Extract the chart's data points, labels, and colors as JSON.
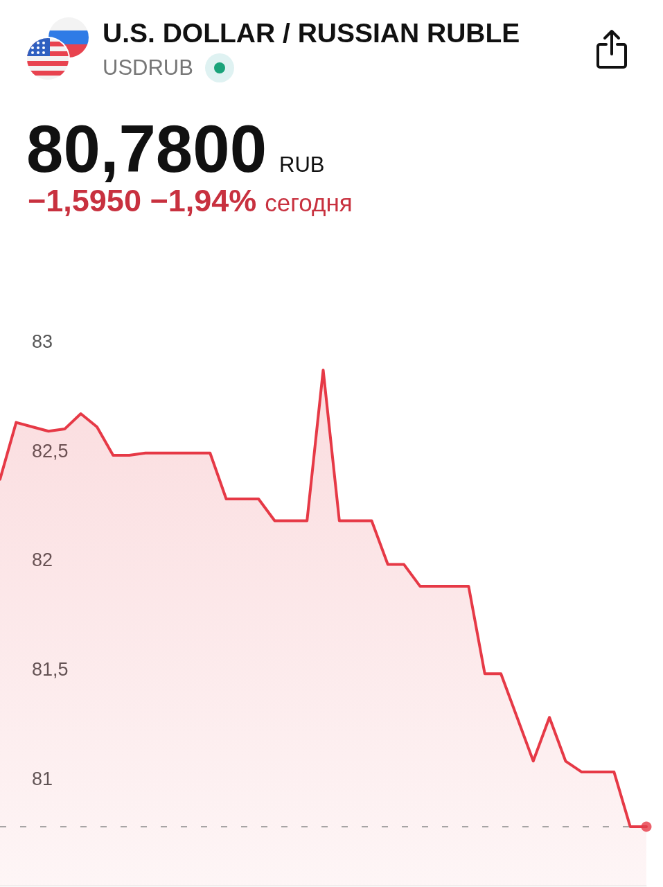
{
  "chart_data": {
    "type": "area",
    "title": "U.S. DOLLAR / RUSSIAN RUBLE",
    "subtitle": "USDRUB",
    "annotations": [
      "80,7800",
      "RUB",
      "−1,5950 −1,94%",
      "сегодня"
    ],
    "categories": [
      null,
      null,
      null,
      null,
      null,
      null,
      null,
      null,
      null,
      null,
      null,
      null,
      null,
      null,
      null,
      null,
      null,
      null,
      null,
      null,
      null,
      null,
      null,
      null,
      null,
      null,
      null,
      null,
      null,
      null,
      null,
      null,
      null,
      null,
      null,
      null,
      null,
      null,
      null,
      null,
      null
    ],
    "series": [
      {
        "color": "#e63946",
        "values": [
          82.37,
          82.63,
          82.61,
          82.59,
          82.6,
          82.67,
          82.61,
          82.48,
          82.48,
          82.49,
          82.49,
          82.49,
          82.49,
          82.49,
          82.28,
          82.28,
          82.28,
          82.18,
          82.18,
          82.18,
          82.87,
          82.18,
          82.18,
          82.18,
          81.98,
          81.98,
          81.88,
          81.88,
          81.88,
          81.88,
          81.48,
          81.48,
          81.28,
          81.08,
          81.28,
          81.08,
          81.03,
          81.03,
          81.03,
          80.78,
          80.78
        ]
      },
      {
        "type": "scatter",
        "marker": "circle",
        "color": "#e63946",
        "values": [
          null,
          null,
          null,
          null,
          null,
          null,
          null,
          null,
          null,
          null,
          null,
          null,
          null,
          null,
          null,
          null,
          null,
          null,
          null,
          null,
          null,
          null,
          null,
          null,
          null,
          null,
          null,
          null,
          null,
          null,
          null,
          null,
          null,
          null,
          null,
          null,
          null,
          null,
          null,
          null,
          80.78
        ]
      }
    ],
    "ylim": [
      80.51,
      83
    ],
    "yticks": [
      81,
      {
        "value": 81.5,
        "label": "81,5"
      },
      82,
      {
        "value": 82.5,
        "label": "82,5"
      },
      83
    ],
    "ref_lines": [
      {
        "axis": "y",
        "value": 80.78,
        "color": "#8a8a8a",
        "line_style": "dashed"
      }
    ],
    "tick_labels": "y",
    "grid": false,
    "marker": "none",
    "line_style": "solid"
  }
}
